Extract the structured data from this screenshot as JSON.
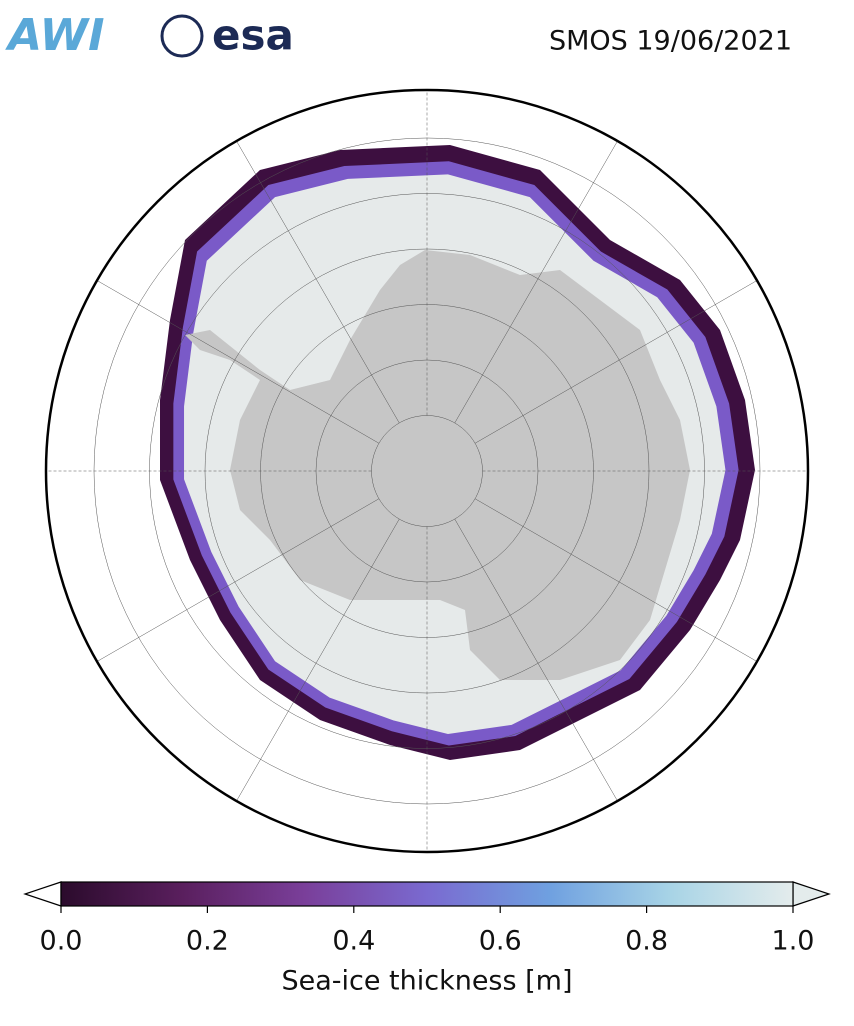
{
  "logos": [
    "AWI",
    "esa"
  ],
  "title": "SMOS 19/06/2021",
  "colorbar": {
    "label": "Sea-ice thickness [m]",
    "lim": [
      0,
      1
    ],
    "ticks": [
      {
        "value": 0,
        "label": "0.0"
      },
      {
        "value": 0.2,
        "label": "0.2"
      },
      {
        "value": 0.4,
        "label": "0.4"
      },
      {
        "value": 0.6,
        "label": "0.6"
      },
      {
        "value": 0.8,
        "label": "0.8"
      },
      {
        "value": 1,
        "label": "1.0"
      }
    ],
    "colors": [
      "#2b0b2c",
      "#5a1f5e",
      "#7a3f9a",
      "#7a6ad0",
      "#6fa0e0",
      "#a8d4e6",
      "#e4ecec"
    ]
  }
}
